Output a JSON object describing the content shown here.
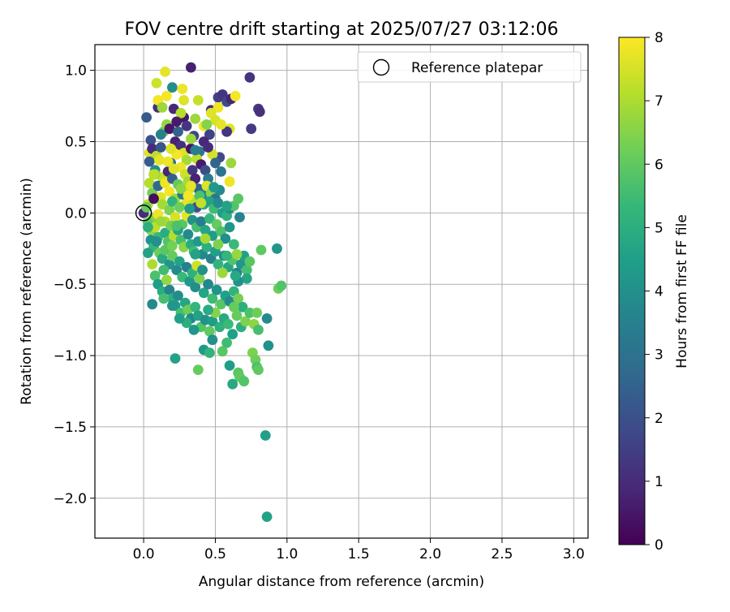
{
  "chart_data": {
    "type": "scatter",
    "title": "FOV centre drift starting at 2025/07/27 03:12:06",
    "xlabel": "Angular distance from reference (arcmin)",
    "ylabel": "Rotation from reference (arcmin)",
    "xlim": [
      -0.34,
      3.1
    ],
    "ylim": [
      -2.28,
      1.18
    ],
    "xticks": [
      0.0,
      0.5,
      1.0,
      1.5,
      2.0,
      2.5,
      3.0
    ],
    "xtick_labels": [
      "0.0",
      "0.5",
      "1.0",
      "1.5",
      "2.0",
      "2.5",
      "3.0"
    ],
    "yticks": [
      1.0,
      0.5,
      0.0,
      -0.5,
      -1.0,
      -1.5,
      -2.0
    ],
    "ytick_labels": [
      "1.0",
      "0.5",
      "0.0",
      "−0.5",
      "−1.0",
      "−1.5",
      "−2.0"
    ],
    "grid": true,
    "legend": {
      "position": "top-right",
      "entries": [
        "Reference platepar"
      ]
    },
    "reference_point": {
      "x": 0.0,
      "y": 0.0
    },
    "colorbar": {
      "label": "Hours from first FF file",
      "range": [
        0,
        8
      ],
      "ticks": [
        0,
        1,
        2,
        3,
        4,
        5,
        6,
        7,
        8
      ],
      "tick_labels": [
        "0",
        "1",
        "2",
        "3",
        "4",
        "5",
        "6",
        "7",
        "8"
      ],
      "colormap": "viridis",
      "stops": [
        "#440154",
        "#482878",
        "#3e4989",
        "#31688e",
        "#26828e",
        "#1f9e89",
        "#35b779",
        "#6ece58",
        "#b5de2b",
        "#fde725"
      ]
    },
    "points": [
      [
        0.33,
        1.02,
        0.7
      ],
      [
        0.74,
        0.95,
        1.2
      ],
      [
        0.15,
        0.99,
        7.7
      ],
      [
        0.16,
        0.82,
        7.9
      ],
      [
        0.2,
        0.88,
        3.9
      ],
      [
        0.27,
        0.87,
        7.8
      ],
      [
        0.1,
        0.74,
        1.1
      ],
      [
        0.21,
        0.73,
        0.9
      ],
      [
        0.28,
        0.67,
        0.5
      ],
      [
        0.3,
        0.61,
        1.3
      ],
      [
        0.36,
        0.66,
        6.8
      ],
      [
        0.38,
        0.79,
        7.3
      ],
      [
        0.47,
        0.72,
        1.0
      ],
      [
        0.52,
        0.81,
        1.5
      ],
      [
        0.55,
        0.83,
        1.2
      ],
      [
        0.58,
        0.78,
        1.8
      ],
      [
        0.61,
        0.8,
        0.8
      ],
      [
        0.64,
        0.82,
        7.9
      ],
      [
        0.8,
        0.73,
        1.4
      ],
      [
        0.81,
        0.71,
        1.1
      ],
      [
        0.75,
        0.59,
        1.4
      ],
      [
        0.52,
        0.74,
        7.8
      ],
      [
        0.47,
        0.7,
        7.6
      ],
      [
        0.42,
        0.61,
        7.9
      ],
      [
        0.46,
        0.55,
        1.6
      ],
      [
        0.42,
        0.5,
        0.9
      ],
      [
        0.5,
        0.65,
        7.5
      ],
      [
        0.6,
        0.59,
        7.6
      ],
      [
        0.58,
        0.57,
        1.2
      ],
      [
        0.53,
        0.39,
        1.8
      ],
      [
        0.61,
        0.35,
        6.8
      ],
      [
        0.02,
        0.67,
        2.3
      ],
      [
        0.09,
        0.91,
        7.4
      ],
      [
        0.1,
        0.79,
        7.9
      ],
      [
        0.13,
        0.74,
        6.8
      ],
      [
        0.14,
        0.57,
        6.1
      ],
      [
        0.04,
        0.42,
        7.6
      ],
      [
        0.05,
        0.51,
        2.0
      ],
      [
        0.06,
        0.45,
        1.0
      ],
      [
        0.09,
        0.4,
        7.2
      ],
      [
        0.12,
        0.55,
        3.5
      ],
      [
        0.16,
        0.62,
        6.7
      ],
      [
        0.18,
        0.59,
        0.5
      ],
      [
        0.22,
        0.5,
        0.8
      ],
      [
        0.24,
        0.57,
        2.5
      ],
      [
        0.26,
        0.47,
        1.1
      ],
      [
        0.28,
        0.42,
        7.6
      ],
      [
        0.3,
        0.37,
        6.9
      ],
      [
        0.33,
        0.45,
        0.4
      ],
      [
        0.35,
        0.54,
        1.7
      ],
      [
        0.39,
        0.43,
        3.1
      ],
      [
        0.37,
        0.38,
        7.2
      ],
      [
        0.4,
        0.34,
        0.6
      ],
      [
        0.43,
        0.3,
        1.9
      ],
      [
        0.45,
        0.24,
        3.3
      ],
      [
        0.48,
        0.41,
        7.5
      ],
      [
        0.5,
        0.35,
        2.6
      ],
      [
        0.04,
        0.36,
        2.3
      ],
      [
        0.08,
        0.3,
        3.9
      ],
      [
        0.11,
        0.37,
        7.7
      ],
      [
        0.13,
        0.25,
        7.3
      ],
      [
        0.17,
        0.29,
        0.9
      ],
      [
        0.19,
        0.35,
        2.9
      ],
      [
        0.23,
        0.41,
        7.9
      ],
      [
        0.26,
        0.32,
        7.8
      ],
      [
        0.29,
        0.27,
        7.4
      ],
      [
        0.31,
        0.22,
        6.9
      ],
      [
        0.34,
        0.3,
        1.3
      ],
      [
        0.36,
        0.24,
        0.8
      ],
      [
        0.38,
        0.17,
        2.5
      ],
      [
        0.41,
        0.13,
        3.7
      ],
      [
        0.44,
        0.19,
        7.6
      ],
      [
        0.47,
        0.14,
        6.6
      ],
      [
        0.5,
        0.1,
        3.2
      ],
      [
        0.53,
        0.16,
        3.8
      ],
      [
        0.04,
        0.21,
        7.1
      ],
      [
        0.06,
        0.14,
        6.3
      ],
      [
        0.08,
        0.27,
        6.8
      ],
      [
        0.1,
        0.19,
        2.7
      ],
      [
        0.12,
        0.11,
        7.6
      ],
      [
        0.15,
        0.21,
        7.8
      ],
      [
        0.18,
        0.15,
        7.9
      ],
      [
        0.2,
        0.24,
        2.4
      ],
      [
        0.22,
        0.1,
        6.8
      ],
      [
        0.24,
        0.2,
        6.1
      ],
      [
        0.27,
        0.13,
        3.3
      ],
      [
        0.29,
        0.06,
        7.7
      ],
      [
        0.32,
        0.17,
        7.4
      ],
      [
        0.35,
        0.09,
        7.2
      ],
      [
        0.37,
        0.04,
        2.0
      ],
      [
        0.39,
        0.12,
        5.7
      ],
      [
        0.42,
        0.06,
        4.8
      ],
      [
        0.46,
        0.08,
        4.6
      ],
      [
        0.49,
        0.03,
        5.5
      ],
      [
        0.52,
        0.07,
        3.9
      ],
      [
        0.55,
        0.0,
        4.4
      ],
      [
        0.58,
        -0.02,
        5.1
      ],
      [
        0.6,
        0.03,
        4.0
      ],
      [
        0.63,
        0.05,
        5.8
      ],
      [
        0.66,
        0.1,
        5.9
      ],
      [
        0.67,
        -0.03,
        3.6
      ],
      [
        0.0,
        0.0,
        1.0
      ],
      [
        0.03,
        0.06,
        7.4
      ],
      [
        0.06,
        -0.04,
        6.5
      ],
      [
        0.07,
        0.1,
        0.3
      ],
      [
        0.1,
        -0.01,
        7.8
      ],
      [
        0.13,
        0.06,
        6.9
      ],
      [
        0.15,
        -0.06,
        7.1
      ],
      [
        0.18,
        0.02,
        6.4
      ],
      [
        0.2,
        0.08,
        5.2
      ],
      [
        0.22,
        -0.03,
        7.5
      ],
      [
        0.25,
        0.04,
        6.2
      ],
      [
        0.27,
        -0.08,
        5.9
      ],
      [
        0.3,
        -0.02,
        7.7
      ],
      [
        0.32,
        0.03,
        4.3
      ],
      [
        0.34,
        -0.05,
        4.1
      ],
      [
        0.37,
        -0.1,
        5.6
      ],
      [
        0.4,
        -0.06,
        3.4
      ],
      [
        0.43,
        -0.12,
        4.7
      ],
      [
        0.46,
        -0.04,
        5.3
      ],
      [
        0.48,
        -0.16,
        4.4
      ],
      [
        0.51,
        -0.08,
        6.1
      ],
      [
        0.54,
        -0.13,
        5.7
      ],
      [
        0.57,
        -0.18,
        3.9
      ],
      [
        0.6,
        -0.1,
        4.2
      ],
      [
        0.63,
        -0.22,
        5.4
      ],
      [
        0.03,
        -0.07,
        6.0
      ],
      [
        0.05,
        -0.12,
        6.6
      ],
      [
        0.08,
        -0.1,
        7.2
      ],
      [
        0.1,
        -0.17,
        5.4
      ],
      [
        0.12,
        -0.06,
        6.8
      ],
      [
        0.15,
        -0.14,
        4.9
      ],
      [
        0.17,
        -0.2,
        5.8
      ],
      [
        0.19,
        -0.09,
        6.3
      ],
      [
        0.21,
        -0.16,
        7.1
      ],
      [
        0.24,
        -0.12,
        4.6
      ],
      [
        0.26,
        -0.19,
        5.6
      ],
      [
        0.28,
        -0.24,
        6.6
      ],
      [
        0.31,
        -0.15,
        3.8
      ],
      [
        0.33,
        -0.22,
        4.9
      ],
      [
        0.35,
        -0.27,
        5.5
      ],
      [
        0.38,
        -0.2,
        4.3
      ],
      [
        0.41,
        -0.29,
        3.7
      ],
      [
        0.44,
        -0.24,
        5.0
      ],
      [
        0.47,
        -0.32,
        3.6
      ],
      [
        0.5,
        -0.27,
        4.5
      ],
      [
        0.52,
        -0.36,
        5.2
      ],
      [
        0.56,
        -0.3,
        3.9
      ],
      [
        0.59,
        -0.38,
        4.7
      ],
      [
        0.62,
        -0.33,
        5.8
      ],
      [
        0.65,
        -0.42,
        3.5
      ],
      [
        0.68,
        -0.36,
        4.2
      ],
      [
        0.7,
        -0.3,
        4.5
      ],
      [
        0.72,
        -0.4,
        5.6
      ],
      [
        0.05,
        -0.19,
        4.1
      ],
      [
        0.07,
        -0.24,
        5.3
      ],
      [
        0.09,
        -0.2,
        4.0
      ],
      [
        0.11,
        -0.28,
        6.2
      ],
      [
        0.13,
        -0.32,
        4.8
      ],
      [
        0.15,
        -0.26,
        5.9
      ],
      [
        0.18,
        -0.36,
        4.2
      ],
      [
        0.2,
        -0.3,
        6.1
      ],
      [
        0.23,
        -0.4,
        3.8
      ],
      [
        0.25,
        -0.34,
        4.6
      ],
      [
        0.27,
        -0.45,
        5.4
      ],
      [
        0.3,
        -0.38,
        3.5
      ],
      [
        0.32,
        -0.48,
        4.3
      ],
      [
        0.34,
        -0.42,
        5.1
      ],
      [
        0.36,
        -0.52,
        3.9
      ],
      [
        0.39,
        -0.46,
        6.4
      ],
      [
        0.42,
        -0.56,
        4.7
      ],
      [
        0.45,
        -0.5,
        3.7
      ],
      [
        0.48,
        -0.6,
        5.5
      ],
      [
        0.51,
        -0.54,
        4.1
      ],
      [
        0.54,
        -0.64,
        5.9
      ],
      [
        0.57,
        -0.58,
        4.5
      ],
      [
        0.6,
        -0.62,
        3.8
      ],
      [
        0.63,
        -0.55,
        5.2
      ],
      [
        0.66,
        -0.6,
        6.3
      ],
      [
        0.69,
        -0.66,
        5.0
      ],
      [
        0.03,
        -0.28,
        4.6
      ],
      [
        0.06,
        -0.36,
        7.0
      ],
      [
        0.08,
        -0.44,
        5.7
      ],
      [
        0.1,
        -0.5,
        4.4
      ],
      [
        0.13,
        -0.55,
        4.9
      ],
      [
        0.16,
        -0.47,
        6.7
      ],
      [
        0.18,
        -0.54,
        3.6
      ],
      [
        0.2,
        -0.6,
        5.0
      ],
      [
        0.22,
        -0.65,
        4.3
      ],
      [
        0.24,
        -0.58,
        3.9
      ],
      [
        0.26,
        -0.7,
        5.6
      ],
      [
        0.29,
        -0.63,
        4.7
      ],
      [
        0.31,
        -0.68,
        6.2
      ],
      [
        0.33,
        -0.74,
        3.8
      ],
      [
        0.36,
        -0.66,
        5.3
      ],
      [
        0.38,
        -0.72,
        4.6
      ],
      [
        0.4,
        -0.8,
        5.8
      ],
      [
        0.43,
        -0.75,
        4.1
      ],
      [
        0.46,
        -0.83,
        6.0
      ],
      [
        0.48,
        -0.76,
        4.4
      ],
      [
        0.5,
        -0.7,
        6.5
      ],
      [
        0.53,
        -0.8,
        5.1
      ],
      [
        0.56,
        -0.74,
        4.8
      ],
      [
        0.59,
        -0.78,
        5.4
      ],
      [
        0.62,
        -0.85,
        4.5
      ],
      [
        0.65,
        -0.72,
        6.1
      ],
      [
        0.68,
        -0.8,
        5.0
      ],
      [
        0.71,
        -0.76,
        6.4
      ],
      [
        0.74,
        -0.7,
        5.7
      ],
      [
        0.77,
        -0.78,
        6.6
      ],
      [
        0.79,
        -0.7,
        6.2
      ],
      [
        0.8,
        -0.82,
        5.6
      ],
      [
        0.82,
        -0.26,
        6.0
      ],
      [
        0.86,
        -0.74,
        3.8
      ],
      [
        0.87,
        -0.93,
        4.0
      ],
      [
        0.93,
        -0.25,
        4.2
      ],
      [
        0.94,
        -0.53,
        6.2
      ],
      [
        0.96,
        -0.51,
        5.8
      ],
      [
        0.22,
        -1.02,
        4.6
      ],
      [
        0.38,
        -1.1,
        6.1
      ],
      [
        0.42,
        -0.96,
        4.3
      ],
      [
        0.46,
        -0.98,
        5.2
      ],
      [
        0.48,
        -0.89,
        4.0
      ],
      [
        0.55,
        -0.97,
        5.9
      ],
      [
        0.58,
        -0.91,
        5.5
      ],
      [
        0.6,
        -1.07,
        4.4
      ],
      [
        0.66,
        -1.12,
        5.9
      ],
      [
        0.67,
        -1.15,
        6.0
      ],
      [
        0.7,
        -1.18,
        5.8
      ],
      [
        0.62,
        -1.2,
        4.8
      ],
      [
        0.76,
        -0.98,
        6.4
      ],
      [
        0.78,
        -1.03,
        6.2
      ],
      [
        0.79,
        -1.08,
        5.7
      ],
      [
        0.8,
        -1.1,
        6.0
      ],
      [
        0.85,
        -1.56,
        4.5
      ],
      [
        0.86,
        -2.13,
        4.6
      ],
      [
        0.06,
        -0.64,
        3.8
      ],
      [
        0.28,
        0.79,
        7.6
      ],
      [
        0.54,
        0.62,
        7.7
      ],
      [
        0.44,
        0.62,
        6.5
      ],
      [
        0.26,
        0.7,
        7.1
      ],
      [
        0.19,
        0.45,
        7.6
      ],
      [
        0.07,
        0.27,
        7.2
      ],
      [
        0.17,
        0.36,
        7.8
      ],
      [
        0.33,
        0.52,
        6.8
      ],
      [
        0.23,
        0.64,
        0.6
      ],
      [
        0.12,
        0.46,
        2.2
      ],
      [
        0.45,
        0.46,
        1.0
      ],
      [
        0.36,
        0.44,
        3.4
      ],
      [
        0.54,
        0.29,
        3.1
      ],
      [
        0.6,
        0.22,
        7.8
      ],
      [
        0.58,
        0.05,
        4.6
      ],
      [
        0.49,
        0.18,
        4.3
      ],
      [
        0.14,
        -0.4,
        5.5
      ],
      [
        0.2,
        -0.23,
        6.3
      ],
      [
        0.37,
        -0.37,
        7.4
      ],
      [
        0.58,
        -0.3,
        5.3
      ],
      [
        0.65,
        -0.29,
        6.7
      ],
      [
        0.74,
        -0.34,
        5.9
      ],
      [
        0.72,
        -0.46,
        4.7
      ],
      [
        0.66,
        -0.48,
        4.0
      ],
      [
        0.45,
        -0.68,
        4.9
      ],
      [
        0.35,
        -0.82,
        4.2
      ],
      [
        0.3,
        -0.77,
        5.0
      ],
      [
        0.25,
        -0.74,
        4.5
      ],
      [
        0.14,
        -0.6,
        5.6
      ],
      [
        0.03,
        -0.1,
        5.0
      ],
      [
        0.02,
        0.04,
        6.1
      ],
      [
        0.26,
        0.17,
        6.6
      ],
      [
        0.33,
        0.19,
        7.7
      ],
      [
        0.4,
        0.07,
        7.3
      ],
      [
        0.21,
        0.31,
        7.6
      ],
      [
        0.31,
        0.12,
        7.9
      ],
      [
        0.43,
        -0.18,
        6.9
      ],
      [
        0.52,
        -0.22,
        6.4
      ],
      [
        0.55,
        -0.42,
        6.8
      ],
      [
        0.63,
        -0.66,
        6.1
      ],
      [
        0.64,
        -0.44,
        4.8
      ],
      [
        0.2,
        -0.65,
        4.2
      ],
      [
        0.23,
        -0.09,
        5.7
      ],
      [
        0.36,
        -0.29,
        4.6
      ],
      [
        0.41,
        -0.4,
        4.0
      ]
    ]
  }
}
